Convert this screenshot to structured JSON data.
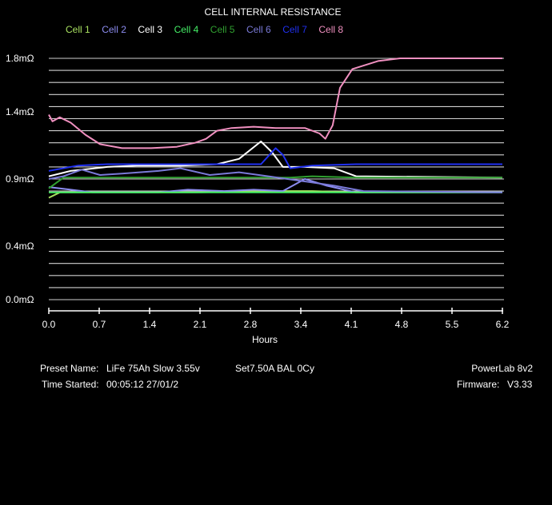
{
  "chart_data": {
    "type": "line",
    "title": "CELL INTERNAL RESISTANCE",
    "xlabel": "Hours",
    "ylabel": "",
    "xlim": [
      0,
      6.2
    ],
    "ylim": [
      0,
      1.8
    ],
    "x_ticks": [
      "0.0",
      "0.7",
      "1.4",
      "2.1",
      "2.8",
      "3.4",
      "4.1",
      "4.8",
      "5.5",
      "6.2"
    ],
    "y_ticks": [
      {
        "value": 1.8,
        "label": "1.8mΩ"
      },
      {
        "value": 1.4,
        "label": "1.4mΩ"
      },
      {
        "value": 0.9,
        "label": "0.9mΩ"
      },
      {
        "value": 0.4,
        "label": "0.4mΩ"
      },
      {
        "value": 0.0,
        "label": "0.0mΩ"
      }
    ],
    "grid": true,
    "legend_position": "top",
    "series": [
      {
        "name": "Cell 1",
        "color": "#a8e060",
        "points": [
          [
            0,
            0.76
          ],
          [
            0.15,
            0.8
          ],
          [
            0.4,
            0.8
          ],
          [
            1,
            0.8
          ],
          [
            2,
            0.8
          ],
          [
            3,
            0.81
          ],
          [
            3.6,
            0.81
          ],
          [
            4.2,
            0.8
          ],
          [
            6.2,
            0.8
          ]
        ]
      },
      {
        "name": "Cell 2",
        "color": "#8c8cf0",
        "points": [
          [
            0,
            0.84
          ],
          [
            0.3,
            0.82
          ],
          [
            0.6,
            0.8
          ],
          [
            1,
            0.8
          ],
          [
            1.5,
            0.8
          ],
          [
            1.9,
            0.82
          ],
          [
            2.4,
            0.81
          ],
          [
            2.8,
            0.82
          ],
          [
            3.2,
            0.81
          ],
          [
            3.5,
            0.9
          ],
          [
            3.8,
            0.85
          ],
          [
            4.2,
            0.8
          ],
          [
            6.2,
            0.8
          ]
        ]
      },
      {
        "name": "Cell 3",
        "color": "#ffffff",
        "points": [
          [
            0,
            0.92
          ],
          [
            0.3,
            0.96
          ],
          [
            0.8,
            0.99
          ],
          [
            1.2,
            1.0
          ],
          [
            1.8,
            1.0
          ],
          [
            2.3,
            1.01
          ],
          [
            2.6,
            1.05
          ],
          [
            2.9,
            1.18
          ],
          [
            3.05,
            1.1
          ],
          [
            3.2,
            0.99
          ],
          [
            3.5,
            0.99
          ],
          [
            3.9,
            0.98
          ],
          [
            4.2,
            0.92
          ],
          [
            6.2,
            0.91
          ]
        ]
      },
      {
        "name": "Cell 4",
        "color": "#44ee66",
        "points": [
          [
            0,
            0.8
          ],
          [
            0.4,
            0.8
          ],
          [
            1.5,
            0.8
          ],
          [
            2.5,
            0.8
          ],
          [
            3.6,
            0.8
          ],
          [
            4.1,
            0.8
          ],
          [
            6.2,
            0.8
          ]
        ]
      },
      {
        "name": "Cell 5",
        "color": "#30a030",
        "points": [
          [
            0,
            0.83
          ],
          [
            0.2,
            0.91
          ],
          [
            0.5,
            0.91
          ],
          [
            1.5,
            0.91
          ],
          [
            2.5,
            0.91
          ],
          [
            3.3,
            0.91
          ],
          [
            3.6,
            0.92
          ],
          [
            4.2,
            0.91
          ],
          [
            6.2,
            0.91
          ]
        ]
      },
      {
        "name": "Cell 6",
        "color": "#7a7ad8",
        "points": [
          [
            0,
            0.9
          ],
          [
            0.2,
            0.92
          ],
          [
            0.45,
            0.97
          ],
          [
            0.7,
            0.93
          ],
          [
            1,
            0.94
          ],
          [
            1.5,
            0.96
          ],
          [
            1.8,
            0.98
          ],
          [
            2.2,
            0.93
          ],
          [
            2.6,
            0.95
          ],
          [
            3,
            0.92
          ],
          [
            3.4,
            0.89
          ],
          [
            3.9,
            0.85
          ],
          [
            4.3,
            0.81
          ],
          [
            6.2,
            0.8
          ]
        ]
      },
      {
        "name": "Cell 7",
        "color": "#2030f0",
        "points": [
          [
            0,
            0.96
          ],
          [
            0.4,
            1.0
          ],
          [
            0.8,
            1.01
          ],
          [
            1.3,
            1.01
          ],
          [
            1.8,
            1.01
          ],
          [
            2.4,
            1.01
          ],
          [
            2.9,
            1.01
          ],
          [
            3.1,
            1.13
          ],
          [
            3.2,
            1.08
          ],
          [
            3.3,
            0.98
          ],
          [
            3.6,
            1.0
          ],
          [
            4.2,
            1.01
          ],
          [
            6.2,
            1.01
          ]
        ]
      },
      {
        "name": "Cell 8",
        "color": "#f090c0",
        "points": [
          [
            0,
            1.38
          ],
          [
            0.05,
            1.33
          ],
          [
            0.15,
            1.36
          ],
          [
            0.3,
            1.32
          ],
          [
            0.5,
            1.23
          ],
          [
            0.7,
            1.16
          ],
          [
            1,
            1.13
          ],
          [
            1.4,
            1.13
          ],
          [
            1.75,
            1.14
          ],
          [
            2,
            1.17
          ],
          [
            2.15,
            1.2
          ],
          [
            2.3,
            1.26
          ],
          [
            2.5,
            1.28
          ],
          [
            2.8,
            1.29
          ],
          [
            3.1,
            1.28
          ],
          [
            3.5,
            1.28
          ],
          [
            3.7,
            1.24
          ],
          [
            3.78,
            1.2
          ],
          [
            3.88,
            1.3
          ],
          [
            3.98,
            1.58
          ],
          [
            4.15,
            1.72
          ],
          [
            4.5,
            1.78
          ],
          [
            4.8,
            1.8
          ],
          [
            6.2,
            1.8
          ]
        ]
      }
    ]
  },
  "info": {
    "preset_label": "Preset Name:",
    "preset_value": "LiFe 75Ah Slow 3.55v",
    "settings": "Set7.50A BAL 0Cy",
    "time_label": "Time Started:",
    "time_value": "00:05:12  27/01/2",
    "device": "PowerLab 8v2",
    "firmware_label": "Firmware:",
    "firmware_value": "V3.33"
  }
}
